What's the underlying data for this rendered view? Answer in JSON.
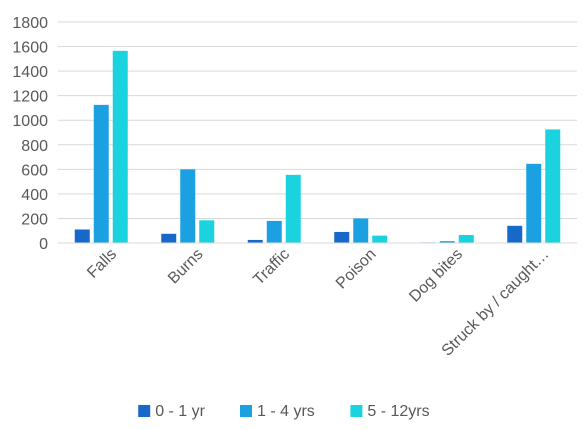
{
  "chart_data": {
    "type": "bar",
    "title": "",
    "xlabel": "",
    "ylabel": "",
    "categories": [
      "Falls",
      "Burns",
      "Traffic",
      "Poison",
      "Dog bites",
      "Struck by / caught…"
    ],
    "series": [
      {
        "name": "0 - 1 yr",
        "color": "#1669C9",
        "values": [
          110,
          75,
          25,
          90,
          5,
          140
        ]
      },
      {
        "name": "1 - 4 yrs",
        "color": "#1BA1E2",
        "values": [
          1125,
          600,
          180,
          200,
          15,
          645
        ]
      },
      {
        "name": "5 - 12yrs",
        "color": "#1AD3DE",
        "values": [
          1565,
          185,
          555,
          60,
          65,
          925
        ]
      }
    ],
    "ylim": [
      0,
      1800
    ],
    "yticks": [
      0,
      200,
      400,
      600,
      800,
      1000,
      1200,
      1400,
      1600,
      1800
    ],
    "grid": true,
    "legend": "bottom"
  }
}
